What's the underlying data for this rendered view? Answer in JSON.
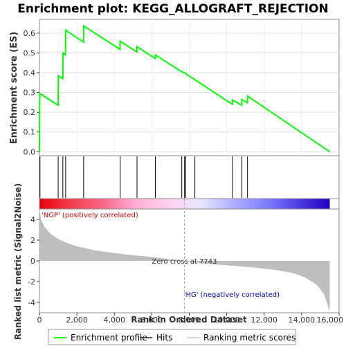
{
  "chart_data": {
    "type": "line",
    "title": "Enrichment plot: KEGG_ALLOGRAFT_REJECTION",
    "top_panel": {
      "ylabel": "Enrichment score (ES)",
      "ylim": [
        -0.02,
        0.67
      ],
      "yticks": [
        "0.0",
        "0.1",
        "0.2",
        "0.3",
        "0.4",
        "0.5",
        "0.6"
      ],
      "ytick_values": [
        0.0,
        0.1,
        0.2,
        0.3,
        0.4,
        0.5,
        0.6
      ],
      "grid": true,
      "line_color": "#00ff00",
      "points": [
        [
          0,
          0.0
        ],
        [
          20,
          0.295
        ],
        [
          1000,
          0.235
        ],
        [
          1010,
          0.385
        ],
        [
          1250,
          0.37
        ],
        [
          1260,
          0.5
        ],
        [
          1390,
          0.49
        ],
        [
          1400,
          0.615
        ],
        [
          2350,
          0.555
        ],
        [
          2360,
          0.637
        ],
        [
          4300,
          0.518
        ],
        [
          4310,
          0.56
        ],
        [
          5200,
          0.505
        ],
        [
          5210,
          0.532
        ],
        [
          6180,
          0.472
        ],
        [
          6190,
          0.49
        ],
        [
          7600,
          0.405
        ],
        [
          7750,
          0.4
        ],
        [
          7800,
          0.395
        ],
        [
          8300,
          0.365
        ],
        [
          10300,
          0.24
        ],
        [
          10310,
          0.262
        ],
        [
          10800,
          0.235
        ],
        [
          10810,
          0.265
        ],
        [
          11100,
          0.248
        ],
        [
          11110,
          0.282
        ],
        [
          15500,
          0.0
        ]
      ]
    },
    "hits": [
      30,
      1000,
      1250,
      1400,
      2360,
      4310,
      5210,
      6190,
      7600,
      7750,
      7800,
      8300,
      10310,
      10810,
      11110
    ],
    "ranking_bar": {
      "gradient": [
        "#e8000f",
        "#f04050",
        "#f86888",
        "#ffb0d8",
        "#ffd0f0",
        "#e8e8ff",
        "#b0b0ff",
        "#8080ff",
        "#5040e0",
        "#2000c0"
      ]
    },
    "bottom_panel": {
      "ylabel": "Ranked list metric (Signal2Noise)",
      "xlabel": "Rank in Ordered Dataset",
      "ylim": [
        -5,
        5
      ],
      "yticks": [
        "4",
        "2",
        "0",
        "-2",
        "-4"
      ],
      "ytick_values": [
        4,
        2,
        0,
        -2,
        -4
      ],
      "xlim": [
        0,
        16000
      ],
      "xticks": [
        "0",
        "2,000",
        "4,000",
        "6,000",
        "8,000",
        "10,000",
        "12,000",
        "14,000",
        "16,000"
      ],
      "xtick_values": [
        0,
        2000,
        4000,
        6000,
        8000,
        10000,
        12000,
        14000,
        16000
      ],
      "metric_points": [
        [
          0,
          5.0
        ],
        [
          100,
          3.9
        ],
        [
          300,
          3.2
        ],
        [
          600,
          2.6
        ],
        [
          1000,
          2.1
        ],
        [
          1500,
          1.7
        ],
        [
          2000,
          1.4
        ],
        [
          3000,
          1.0
        ],
        [
          4000,
          0.75
        ],
        [
          5000,
          0.55
        ],
        [
          6000,
          0.38
        ],
        [
          7000,
          0.15
        ],
        [
          7743,
          0.0
        ],
        [
          8500,
          -0.2
        ],
        [
          9500,
          -0.35
        ],
        [
          10500,
          -0.5
        ],
        [
          11500,
          -0.65
        ],
        [
          12500,
          -0.85
        ],
        [
          13500,
          -1.15
        ],
        [
          14200,
          -1.6
        ],
        [
          14800,
          -2.3
        ],
        [
          15200,
          -3.2
        ],
        [
          15500,
          -4.9
        ]
      ],
      "zero_cross_label": "Zero cross at 7743",
      "zero_cross_x": 7743,
      "pos_label": "'NGP' (positively correlated)",
      "neg_label": "'HG' (negatively correlated)"
    },
    "legend": {
      "placement": "bottom",
      "items": [
        {
          "label": "Enrichment profile",
          "color": "#00ff00",
          "kind": "line"
        },
        {
          "label": "Hits",
          "color": "#000000",
          "kind": "line"
        },
        {
          "label": "Ranking metric scores",
          "color": "#bebebe",
          "kind": "line"
        }
      ]
    },
    "x_max_rank": 15500
  }
}
